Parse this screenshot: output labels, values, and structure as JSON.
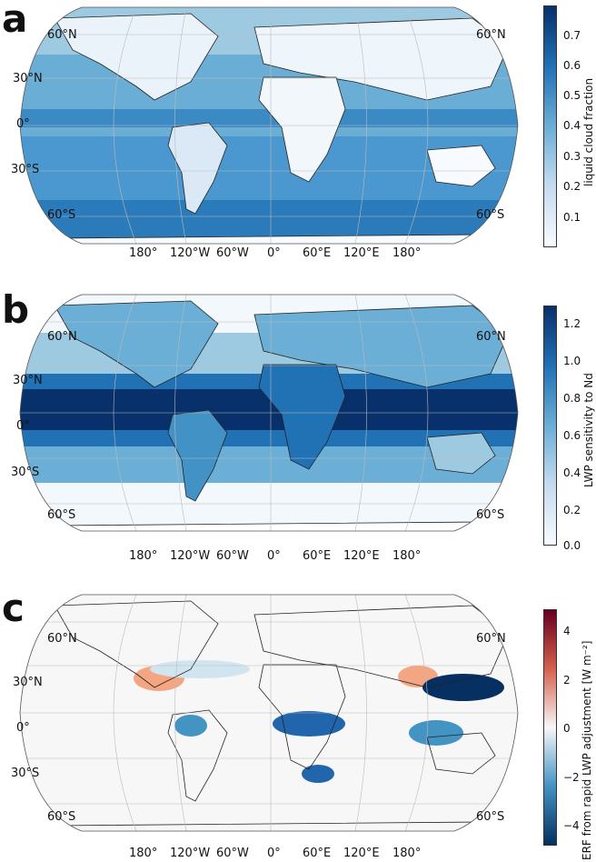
{
  "panels": [
    {
      "letter": "a",
      "colorbar": {
        "label": "liquid cloud fraction",
        "ticks": [
          "0.7",
          "0.6",
          "0.5",
          "0.4",
          "0.3",
          "0.2",
          "0.1"
        ],
        "range": [
          0,
          0.8
        ],
        "colors": [
          "#08306b",
          "#2171b5",
          "#6baed6",
          "#c6dbef",
          "#f7fbff"
        ]
      }
    },
    {
      "letter": "b",
      "colorbar": {
        "label": "LWP sensitivity to Nd",
        "ticks": [
          "1.2",
          "1.0",
          "0.8",
          "0.6",
          "0.4",
          "0.2",
          "0.0"
        ],
        "range": [
          0,
          1.3
        ],
        "colors": [
          "#08306b",
          "#2171b5",
          "#6baed6",
          "#c6dbef",
          "#f7fbff"
        ]
      }
    },
    {
      "letter": "c",
      "colorbar": {
        "label": "ERF from rapid LWP adjustment [W m⁻²]",
        "ticks": [
          "4",
          "2",
          "0",
          "−2",
          "−4"
        ],
        "range": [
          -5,
          5
        ],
        "colors": [
          "#67001f",
          "#d6604d",
          "#f7f7f7",
          "#4393c3",
          "#053061"
        ]
      }
    }
  ],
  "lat_labels": {
    "left": [
      "60°N",
      "30°N",
      "0°",
      "30°S",
      "60°S"
    ],
    "right": [
      "60°N",
      "60°S"
    ]
  },
  "lon_labels": [
    "180°",
    "120°W",
    "60°W",
    "0°",
    "60°E",
    "120°E",
    "180°"
  ]
}
